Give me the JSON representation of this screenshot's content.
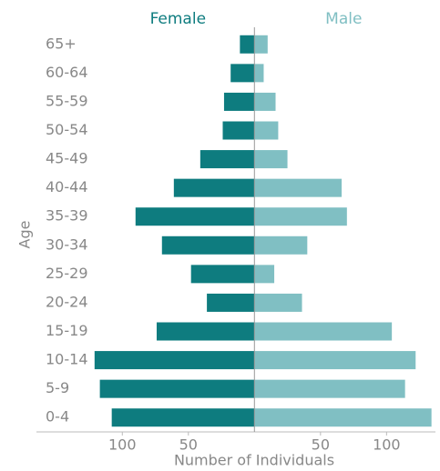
{
  "chart_data": {
    "type": "pyramid",
    "xlabel": "Number of Individuals",
    "ylabel": "Age",
    "categories": [
      "65+",
      "60-64",
      "55-59",
      "50-54",
      "45-49",
      "40-44",
      "35-39",
      "30-34",
      "25-29",
      "20-24",
      "15-19",
      "10-14",
      "5-9",
      "0-4"
    ],
    "series": [
      {
        "name": "Female",
        "color": "#0e7c7f",
        "side": "left",
        "values": [
          11,
          18,
          23,
          24,
          41,
          61,
          90,
          70,
          48,
          36,
          74,
          121,
          117,
          108
        ]
      },
      {
        "name": "Male",
        "color": "#80bfc3",
        "side": "right",
        "values": [
          10,
          7,
          16,
          18,
          25,
          66,
          70,
          40,
          15,
          36,
          104,
          122,
          114,
          134
        ]
      }
    ],
    "xlim": [
      -165,
      137
    ],
    "xticks": [
      {
        "value": -100,
        "label": "100"
      },
      {
        "value": -50,
        "label": "50"
      },
      {
        "value": 50,
        "label": "50"
      },
      {
        "value": 100,
        "label": "100"
      }
    ]
  }
}
